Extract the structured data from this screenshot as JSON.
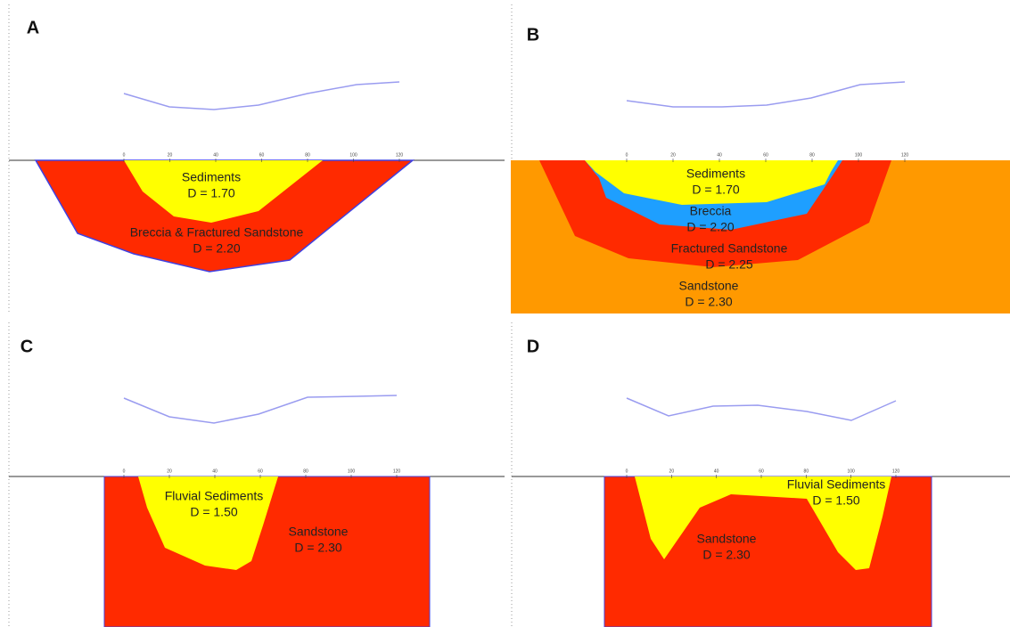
{
  "axis_ticks": [
    "0",
    "20",
    "40",
    "60",
    "80",
    "100",
    "120"
  ],
  "panels": [
    {
      "label": "A",
      "layers": [
        {
          "name": "Sediments",
          "density": "D =  1.70"
        },
        {
          "name": "Breccia & Fractured Sandstone",
          "density": "D =  2.20"
        }
      ]
    },
    {
      "label": "B",
      "layers": [
        {
          "name": "Sediments",
          "density": "D =  1.70"
        },
        {
          "name": "Breccia",
          "density": "D =  2.20"
        },
        {
          "name": "Fractured Sandstone",
          "density": "D =  2.25"
        },
        {
          "name": "Sandstone",
          "density": "D =  2.30"
        }
      ]
    },
    {
      "label": "C",
      "layers": [
        {
          "name": "Fluvial Sediments",
          "density": "D =  1.50"
        },
        {
          "name": "Sandstone",
          "density": "D =  2.30"
        }
      ]
    },
    {
      "label": "D",
      "layers": [
        {
          "name": "Fluvial Sediments",
          "density": "D =  1.50"
        },
        {
          "name": "Sandstone",
          "density": "D =  2.30"
        }
      ]
    }
  ]
}
